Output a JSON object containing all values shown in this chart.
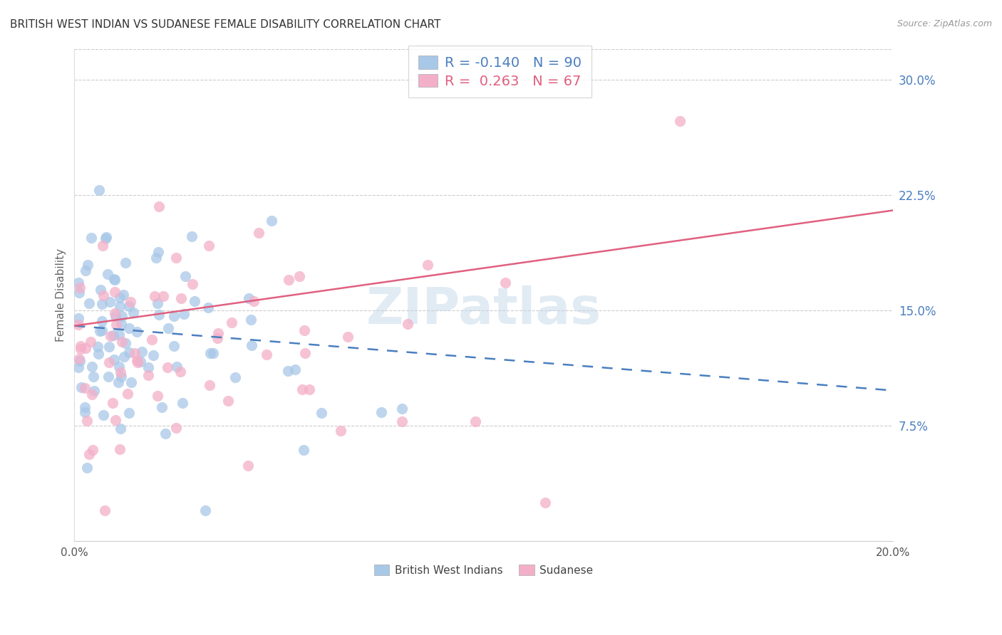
{
  "title": "BRITISH WEST INDIAN VS SUDANESE FEMALE DISABILITY CORRELATION CHART",
  "source": "Source: ZipAtlas.com",
  "ylabel": "Female Disability",
  "x_min": 0.0,
  "x_max": 0.2,
  "y_min": 0.0,
  "y_max": 0.32,
  "y_ticks_right": [
    0.075,
    0.15,
    0.225,
    0.3
  ],
  "y_tick_labels_right": [
    "7.5%",
    "15.0%",
    "22.5%",
    "30.0%"
  ],
  "bwi_color": "#a8c8e8",
  "sudanese_color": "#f4afc8",
  "bwi_line_color": "#4a7fc0",
  "sudanese_line_color": "#e06080",
  "bwi_R": -0.14,
  "bwi_N": 90,
  "sudanese_R": 0.263,
  "sudanese_N": 67,
  "watermark": "ZIPatlas",
  "legend_label_bwi": "British West Indians",
  "legend_label_sudanese": "Sudanese",
  "bwi_line_x0": 0.0,
  "bwi_line_y0": 0.14,
  "bwi_line_x1": 0.2,
  "bwi_line_y1": 0.098,
  "sud_line_x0": 0.0,
  "sud_line_y0": 0.14,
  "sud_line_x1": 0.2,
  "sud_line_y1": 0.215
}
